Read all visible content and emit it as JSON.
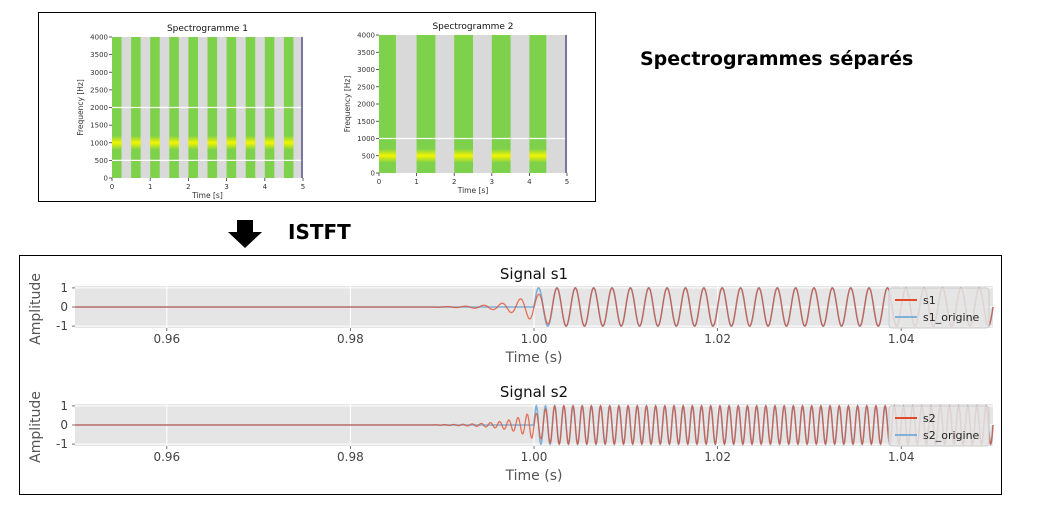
{
  "side_label": "Spectrogrammes séparés",
  "arrow_label": "ISTFT",
  "colors": {
    "spec_green": "#7ed14a",
    "spec_band_yellow": "#f2f500",
    "gap_gray": "#d9d9d9",
    "reconstructed": "#e2492a",
    "origin": "#7fb1d8",
    "plot_bg": "#e5e5e5"
  },
  "chart_data": [
    {
      "type": "heatmap",
      "title": "Spectrogramme 1",
      "xlabel": "Time [s]",
      "ylabel": "Frequency [Hz]",
      "xlim": [
        0,
        5
      ],
      "ylim": [
        0,
        4000
      ],
      "xticks": [
        "0",
        "1",
        "2",
        "3",
        "4",
        "5"
      ],
      "yticks": [
        "0",
        "500",
        "1000",
        "1500",
        "2000",
        "2500",
        "3000",
        "3500",
        "4000"
      ],
      "active_intervals_s": [
        [
          0,
          0.25
        ],
        [
          0.5,
          0.75
        ],
        [
          1,
          1.25
        ],
        [
          1.5,
          1.75
        ],
        [
          2,
          2.25
        ],
        [
          2.5,
          2.75
        ],
        [
          3,
          3.25
        ],
        [
          3.5,
          3.75
        ],
        [
          4,
          4.25
        ],
        [
          4.5,
          4.75
        ]
      ],
      "bright_band_hz": 1000,
      "horizontal_lines_hz": [
        500,
        2000
      ]
    },
    {
      "type": "heatmap",
      "title": "Spectrogramme 2",
      "xlabel": "Time [s]",
      "ylabel": "Frequency [Hz]",
      "xlim": [
        0,
        5
      ],
      "ylim": [
        0,
        4000
      ],
      "xticks": [
        "0",
        "1",
        "2",
        "3",
        "4",
        "5"
      ],
      "yticks": [
        "0",
        "500",
        "1000",
        "1500",
        "2000",
        "2500",
        "3000",
        "3500",
        "4000"
      ],
      "active_intervals_s": [
        [
          0,
          0.45
        ],
        [
          1,
          1.5
        ],
        [
          2,
          2.5
        ],
        [
          3,
          3.5
        ],
        [
          4,
          4.45
        ]
      ],
      "bright_band_hz": 500,
      "horizontal_lines_hz": [
        1000
      ]
    },
    {
      "type": "line",
      "title": "Signal s1",
      "xlabel": "Time (s)",
      "ylabel": "Amplitude",
      "xlim": [
        0.95,
        1.05
      ],
      "ylim": [
        -1.1,
        1.1
      ],
      "xticks": [
        "0.96",
        "0.98",
        "1.00",
        "1.02",
        "1.04"
      ],
      "yticks": [
        "1",
        "0",
        "-1"
      ],
      "frequency_hz": 500,
      "onset_s": 1.0,
      "legend_position": "right",
      "series": [
        {
          "name": "s1",
          "description_values": {
            "pre_ringing_start_s": 0.99,
            "amplitude": 1
          }
        },
        {
          "name": "s1_origine",
          "description_values": {
            "start_s": 1.0,
            "amplitude": 1
          }
        }
      ]
    },
    {
      "type": "line",
      "title": "Signal s2",
      "xlabel": "Time (s)",
      "ylabel": "Amplitude",
      "xlim": [
        0.95,
        1.05
      ],
      "ylim": [
        -1.1,
        1.1
      ],
      "xticks": [
        "0.96",
        "0.98",
        "1.00",
        "1.02",
        "1.04"
      ],
      "yticks": [
        "1",
        "0",
        "-1"
      ],
      "frequency_hz": 1000,
      "onset_s": 1.0,
      "legend_position": "right",
      "series": [
        {
          "name": "s2",
          "description_values": {
            "pre_ringing_start_s": 0.99,
            "amplitude": 1
          }
        },
        {
          "name": "s2_origine",
          "description_values": {
            "start_s": 1.0,
            "amplitude": 1
          }
        }
      ]
    }
  ]
}
